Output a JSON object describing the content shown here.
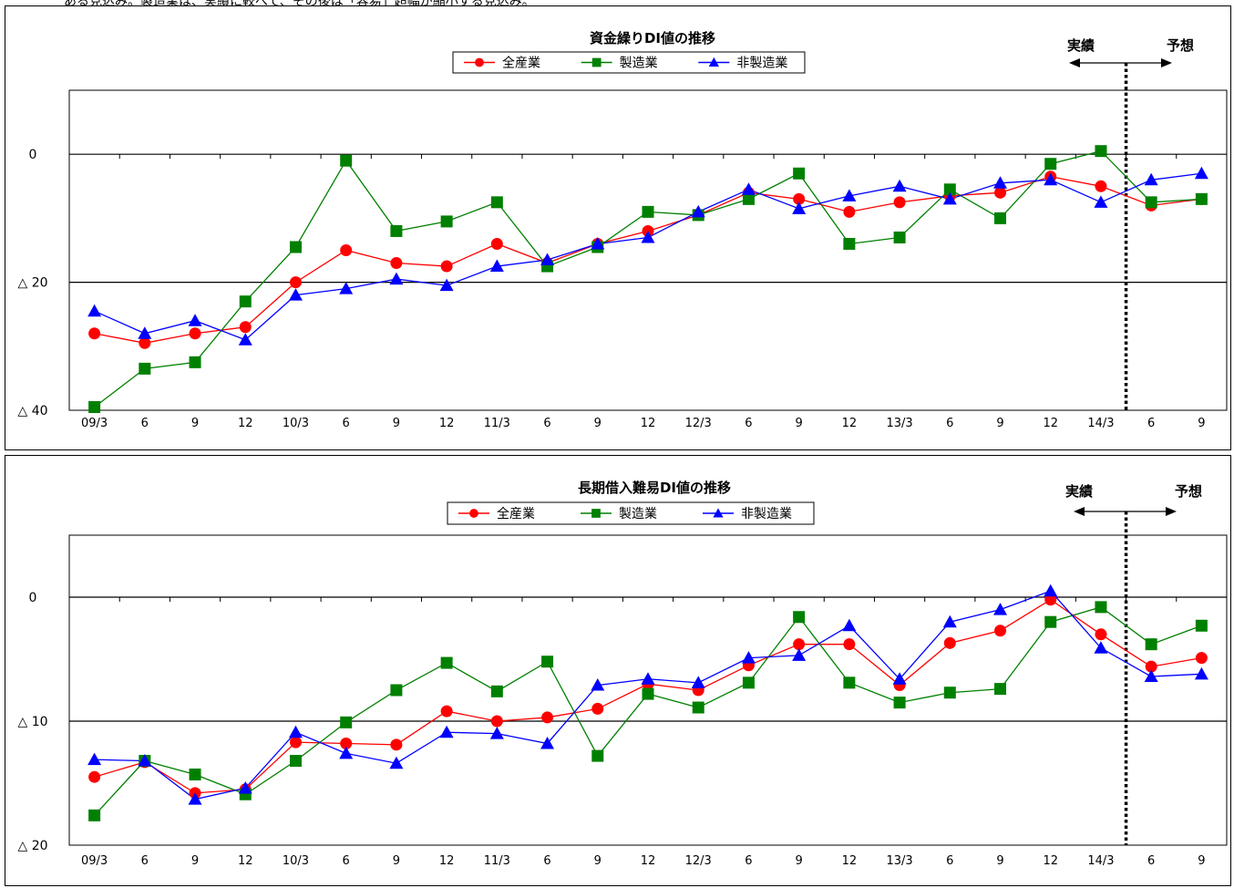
{
  "header_fragment": "ある見込み。製造業は、実績に較べて、その後は「容易」超幅が縮小する見込み。",
  "chart_data": [
    {
      "type": "line",
      "title": "資金繰りDI値の推移",
      "categories": [
        "09/3",
        "6",
        "9",
        "12",
        "10/3",
        "6",
        "9",
        "12",
        "11/3",
        "6",
        "9",
        "12",
        "12/3",
        "6",
        "9",
        "12",
        "13/3",
        "6",
        "9",
        "12",
        "14/3",
        "6",
        "9"
      ],
      "ylim": [
        -40,
        10
      ],
      "yticks": [
        {
          "value": 0,
          "label": "0"
        },
        {
          "value": -20,
          "label": "△ 20"
        },
        {
          "value": -40,
          "label": "△ 40"
        }
      ],
      "gridlines": [
        0,
        -20
      ],
      "legend_position": "top-center",
      "annotations": {
        "actual_label": "実績",
        "forecast_label": "予想",
        "divider_after_index": 20
      },
      "series": [
        {
          "name": "全産業",
          "color": "#ff0000",
          "marker": "circle",
          "values": [
            -28,
            -29.5,
            -28,
            -27,
            -20,
            -15,
            -17,
            -17.5,
            -14,
            -17,
            -14,
            -12,
            -9.5,
            -6,
            -7,
            -9,
            -7.5,
            -6.5,
            -6,
            -3.5,
            -5,
            -8,
            -7
          ]
        },
        {
          "name": "製造業",
          "color": "#008000",
          "marker": "square",
          "values": [
            -39.5,
            -33.5,
            -32.5,
            -23,
            -14.5,
            -1,
            -12,
            -10.5,
            -7.5,
            -17.5,
            -14.5,
            -9,
            -9.5,
            -7,
            -3,
            -14,
            -13,
            -5.5,
            -10,
            -1.5,
            0.5,
            -7.5,
            -7
          ]
        },
        {
          "name": "非製造業",
          "color": "#0000ff",
          "marker": "triangle",
          "values": [
            -24.5,
            -28,
            -26,
            -29,
            -22,
            -21,
            -19.5,
            -20.5,
            -17.5,
            -16.5,
            -14,
            -13,
            -9,
            -5.5,
            -8.5,
            -6.5,
            -5,
            -7,
            -4.5,
            -4,
            -7.5,
            -4,
            -3
          ]
        }
      ]
    },
    {
      "type": "line",
      "title": "長期借入難易DI値の推移",
      "categories": [
        "09/3",
        "6",
        "9",
        "12",
        "10/3",
        "6",
        "9",
        "12",
        "11/3",
        "6",
        "9",
        "12",
        "12/3",
        "6",
        "9",
        "12",
        "13/3",
        "6",
        "9",
        "12",
        "14/3",
        "6",
        "9"
      ],
      "ylim": [
        -20,
        5
      ],
      "yticks": [
        {
          "value": 0,
          "label": "0"
        },
        {
          "value": -10,
          "label": "△ 10"
        },
        {
          "value": -20,
          "label": "△ 20"
        }
      ],
      "gridlines": [
        0,
        -10
      ],
      "legend_position": "top-center",
      "annotations": {
        "actual_label": "実績",
        "forecast_label": "予想",
        "divider_after_index": 20
      },
      "series": [
        {
          "name": "全産業",
          "color": "#ff0000",
          "marker": "circle",
          "values": [
            -14.5,
            -13.3,
            -15.8,
            -15.5,
            -11.7,
            -11.8,
            -11.9,
            -9.2,
            -10,
            -9.7,
            -9,
            -7,
            -7.5,
            -5.5,
            -3.8,
            -3.8,
            -7.1,
            -3.7,
            -2.7,
            -0.2,
            -3,
            -5.6,
            -4.9
          ]
        },
        {
          "name": "製造業",
          "color": "#008000",
          "marker": "square",
          "values": [
            -17.6,
            -13.2,
            -14.3,
            -15.9,
            -13.2,
            -10.1,
            -7.5,
            -5.3,
            -7.6,
            -5.2,
            -12.8,
            -7.8,
            -8.9,
            -6.9,
            -1.6,
            -6.9,
            -8.5,
            -7.7,
            -7.4,
            -2,
            -0.8,
            -3.8,
            -2.3
          ]
        },
        {
          "name": "非製造業",
          "color": "#0000ff",
          "marker": "triangle",
          "values": [
            -13.1,
            -13.2,
            -16.3,
            -15.4,
            -10.9,
            -12.6,
            -13.4,
            -10.9,
            -11,
            -11.8,
            -7.1,
            -6.6,
            -6.9,
            -4.9,
            -4.7,
            -2.3,
            -6.6,
            -2,
            -1,
            0.5,
            -4.1,
            -6.4,
            -6.2
          ]
        }
      ]
    }
  ]
}
